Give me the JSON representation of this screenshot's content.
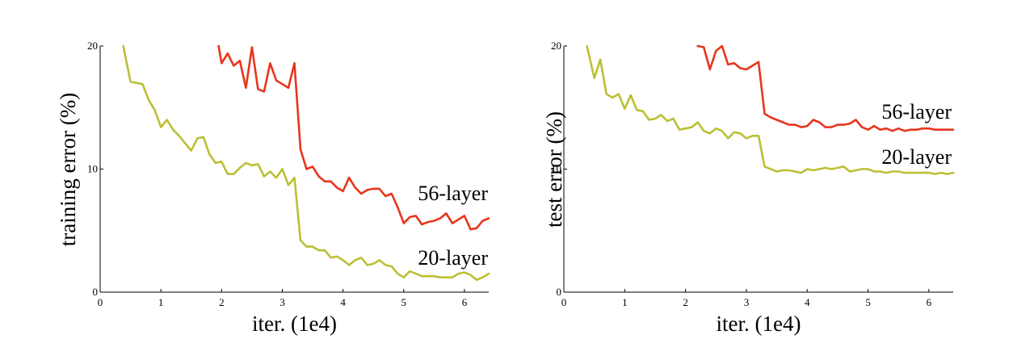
{
  "colors": {
    "red": "#e8351c",
    "olive": "#bcbf34",
    "axis": "#000000"
  },
  "chart_data": [
    {
      "type": "line",
      "xlabel": "iter. (1e4)",
      "ylabel": "training error (%)",
      "xlim": [
        0,
        6.4
      ],
      "ylim": [
        0,
        20
      ],
      "xticks": [
        "0",
        "1",
        "2",
        "3",
        "4",
        "5",
        "6"
      ],
      "yticks": [
        "0",
        "10",
        "20"
      ],
      "series": [
        {
          "name": "56-layer",
          "color": "#e8351c",
          "x": [
            1.95,
            2.0,
            2.1,
            2.2,
            2.3,
            2.4,
            2.5,
            2.6,
            2.7,
            2.8,
            2.9,
            3.1,
            3.2,
            3.3,
            3.4,
            3.5,
            3.6,
            3.7,
            3.8,
            3.9,
            4.0,
            4.1,
            4.2,
            4.3,
            4.4,
            4.5,
            4.6,
            4.7,
            4.8,
            4.9,
            5.0,
            5.1,
            5.2,
            5.3,
            5.4,
            5.5,
            5.6,
            5.7,
            5.8,
            5.9,
            6.0,
            6.1,
            6.2,
            6.3,
            6.4
          ],
          "y": [
            20.0,
            18.6,
            19.4,
            18.4,
            18.8,
            16.6,
            19.9,
            16.5,
            16.3,
            18.6,
            17.2,
            16.6,
            18.6,
            11.6,
            10.0,
            10.2,
            9.4,
            9.0,
            9.0,
            8.5,
            8.2,
            9.3,
            8.5,
            8.0,
            8.3,
            8.4,
            8.4,
            7.8,
            8.0,
            6.9,
            5.6,
            6.1,
            6.2,
            5.5,
            5.7,
            5.8,
            6.0,
            6.4,
            5.6,
            5.9,
            6.2,
            5.1,
            5.2,
            5.8,
            6.0
          ]
        },
        {
          "name": "20-layer",
          "color": "#bcbf34",
          "x": [
            0.38,
            0.5,
            0.7,
            0.8,
            0.9,
            1.0,
            1.1,
            1.2,
            1.3,
            1.4,
            1.5,
            1.6,
            1.7,
            1.8,
            1.9,
            2.0,
            2.1,
            2.2,
            2.3,
            2.4,
            2.5,
            2.6,
            2.7,
            2.8,
            2.9,
            3.0,
            3.1,
            3.2,
            3.3,
            3.4,
            3.5,
            3.6,
            3.7,
            3.8,
            3.9,
            4.0,
            4.1,
            4.2,
            4.3,
            4.4,
            4.5,
            4.6,
            4.7,
            4.8,
            4.9,
            5.0,
            5.1,
            5.2,
            5.3,
            5.4,
            5.5,
            5.6,
            5.7,
            5.8,
            5.9,
            6.0,
            6.1,
            6.2,
            6.3,
            6.4
          ],
          "y": [
            20.0,
            17.1,
            16.9,
            15.6,
            14.8,
            13.4,
            14.0,
            13.2,
            12.7,
            12.1,
            11.5,
            12.5,
            12.6,
            11.2,
            10.5,
            10.6,
            9.6,
            9.6,
            10.1,
            10.5,
            10.3,
            10.4,
            9.4,
            9.8,
            9.3,
            10.0,
            8.7,
            9.3,
            4.2,
            3.7,
            3.7,
            3.4,
            3.4,
            2.8,
            2.9,
            2.6,
            2.2,
            2.6,
            2.8,
            2.2,
            2.3,
            2.6,
            2.2,
            2.1,
            1.5,
            1.2,
            1.7,
            1.5,
            1.3,
            1.3,
            1.3,
            1.2,
            1.2,
            1.2,
            1.5,
            1.6,
            1.4,
            1.0,
            1.2,
            1.5
          ]
        }
      ]
    },
    {
      "type": "line",
      "xlabel": "iter. (1e4)",
      "ylabel": "test error (%)",
      "xlim": [
        0,
        6.4
      ],
      "ylim": [
        0,
        20
      ],
      "xticks": [
        "0",
        "1",
        "2",
        "3",
        "4",
        "5",
        "6"
      ],
      "yticks": [
        "0",
        "10",
        "20"
      ],
      "series": [
        {
          "name": "56-layer",
          "color": "#e8351c",
          "x": [
            2.2,
            2.3,
            2.4,
            2.5,
            2.6,
            2.7,
            2.8,
            2.9,
            3.0,
            3.1,
            3.2,
            3.3,
            3.4,
            3.5,
            3.6,
            3.7,
            3.8,
            3.9,
            4.0,
            4.1,
            4.2,
            4.3,
            4.4,
            4.5,
            4.6,
            4.7,
            4.8,
            4.9,
            5.0,
            5.1,
            5.2,
            5.3,
            5.4,
            5.5,
            5.6,
            5.7,
            5.8,
            5.9,
            6.0,
            6.1,
            6.2,
            6.3,
            6.4
          ],
          "y": [
            20.0,
            19.9,
            18.1,
            19.6,
            20.0,
            18.5,
            18.6,
            18.2,
            18.1,
            18.4,
            18.7,
            14.5,
            14.2,
            14.0,
            13.8,
            13.6,
            13.6,
            13.4,
            13.5,
            14.0,
            13.8,
            13.4,
            13.4,
            13.6,
            13.6,
            13.7,
            14.0,
            13.4,
            13.2,
            13.5,
            13.2,
            13.3,
            13.1,
            13.3,
            13.1,
            13.2,
            13.2,
            13.3,
            13.3,
            13.2,
            13.2,
            13.2,
            13.2
          ]
        },
        {
          "name": "20-layer",
          "color": "#bcbf34",
          "x": [
            0.38,
            0.5,
            0.6,
            0.7,
            0.8,
            0.9,
            1.0,
            1.1,
            1.2,
            1.3,
            1.4,
            1.5,
            1.6,
            1.7,
            1.8,
            1.9,
            2.0,
            2.1,
            2.2,
            2.3,
            2.4,
            2.5,
            2.6,
            2.7,
            2.8,
            2.9,
            3.0,
            3.1,
            3.2,
            3.3,
            3.4,
            3.5,
            3.6,
            3.7,
            3.8,
            3.9,
            4.0,
            4.1,
            4.2,
            4.3,
            4.4,
            4.5,
            4.6,
            4.7,
            4.8,
            4.9,
            5.0,
            5.1,
            5.2,
            5.3,
            5.4,
            5.5,
            5.6,
            5.7,
            5.8,
            5.9,
            6.0,
            6.1,
            6.2,
            6.3,
            6.4
          ],
          "y": [
            20.0,
            17.4,
            18.9,
            16.1,
            15.8,
            16.1,
            14.9,
            16.0,
            14.8,
            14.7,
            14.0,
            14.1,
            14.4,
            13.9,
            14.1,
            13.2,
            13.3,
            13.4,
            13.8,
            13.1,
            12.9,
            13.3,
            13.1,
            12.5,
            13.0,
            12.9,
            12.5,
            12.7,
            12.7,
            10.2,
            10.0,
            9.8,
            9.9,
            9.9,
            9.8,
            9.7,
            10.0,
            9.9,
            10.0,
            10.1,
            10.0,
            10.1,
            10.2,
            9.8,
            9.9,
            10.0,
            10.0,
            9.8,
            9.8,
            9.7,
            9.8,
            9.8,
            9.7,
            9.7,
            9.7,
            9.7,
            9.7,
            9.6,
            9.7,
            9.6,
            9.7
          ]
        }
      ]
    }
  ]
}
